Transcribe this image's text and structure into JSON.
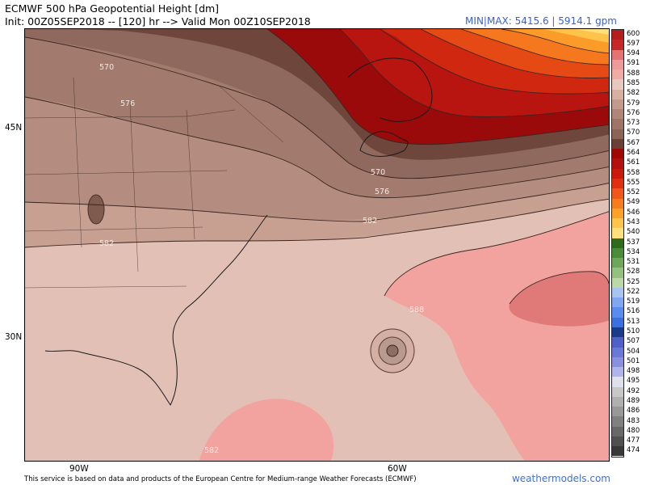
{
  "header": {
    "title": "ECMWF 500 hPa Geopotential Height [dm]",
    "init": "Init: 00Z05SEP2018 -- [120] hr --> Valid Mon 00Z10SEP2018",
    "minmax": "MIN|MAX: 5415.6 | 5914.1 gpm"
  },
  "axes": {
    "lat_labels": [
      "45N",
      "30N"
    ],
    "lon_labels": [
      "90W",
      "60W"
    ]
  },
  "contour_labels": [
    "570",
    "576",
    "570",
    "576",
    "582",
    "582",
    "588",
    "582"
  ],
  "colorbar": {
    "labels": [
      "600",
      "597",
      "594",
      "591",
      "588",
      "585",
      "582",
      "579",
      "576",
      "573",
      "570",
      "567",
      "564",
      "561",
      "558",
      "555",
      "552",
      "549",
      "546",
      "543",
      "540",
      "537",
      "534",
      "531",
      "528",
      "525",
      "522",
      "519",
      "516",
      "513",
      "510",
      "507",
      "504",
      "501",
      "498",
      "495",
      "492",
      "489",
      "486",
      "483",
      "480",
      "477",
      "474"
    ],
    "colors": [
      "#b71c1c",
      "#c62828",
      "#e57373",
      "#ef9a9a",
      "#f2aaa4",
      "#e9c8bd",
      "#d8b0a2",
      "#c49a8c",
      "#b08678",
      "#9e7466",
      "#8b6457",
      "#6a3f35",
      "#a00808",
      "#b41010",
      "#cc1a0a",
      "#e03010",
      "#f0581a",
      "#f77c20",
      "#ffa028",
      "#ffc44a",
      "#ffe07a",
      "#2e6b1e",
      "#4a8c38",
      "#6ea65a",
      "#96c080",
      "#bcd8a8",
      "#a8c4f0",
      "#80a8f0",
      "#5a8cf0",
      "#3c70e0",
      "#1c3a8a",
      "#5060c8",
      "#6a78d8",
      "#8a90e0",
      "#b0b4ec",
      "#e0e0ec",
      "#c8c8c8",
      "#b0b0b0",
      "#989898",
      "#808080",
      "#686868",
      "#505050",
      "#383838"
    ]
  },
  "footer": {
    "credit": "This service is based on data and products of the European Centre for Medium-range Weather Forecasts (ECMWF)",
    "brand": "weathermodels.com"
  }
}
